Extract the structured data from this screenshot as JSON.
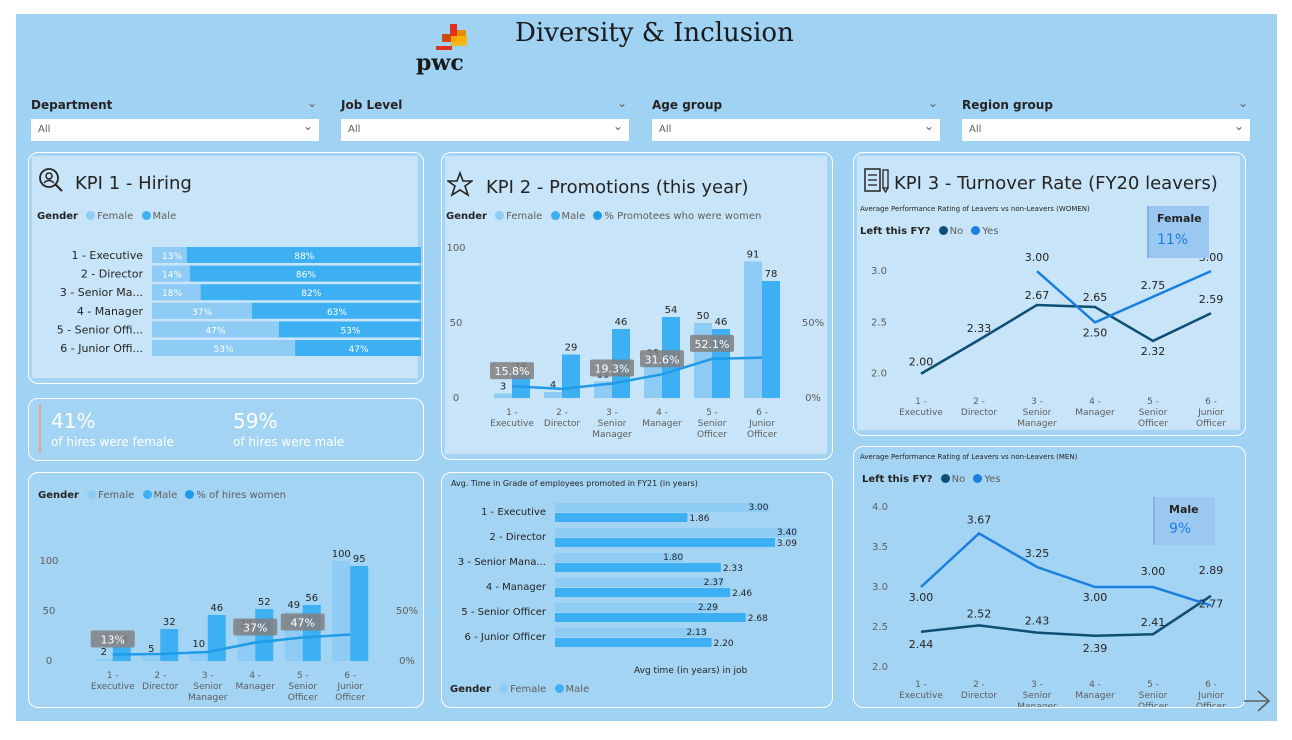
{
  "header": {
    "title": "Diversity & Inclusion",
    "logo_text": "pwc"
  },
  "filters": [
    {
      "label": "Department",
      "value": "All"
    },
    {
      "label": "Job Level",
      "value": "All"
    },
    {
      "label": "Age group",
      "value": "All"
    },
    {
      "label": "Region group",
      "value": "All"
    }
  ],
  "kpi1": {
    "title": "KPI 1 - Hiring",
    "legend_title": "Gender",
    "legend": [
      "Female",
      "Male"
    ],
    "rows": [
      {
        "label": "1 - Executive",
        "female": "13%",
        "male": "88%"
      },
      {
        "label": "2 - Director",
        "female": "14%",
        "male": "86%"
      },
      {
        "label": "3 - Senior Ma...",
        "female": "18%",
        "male": "82%"
      },
      {
        "label": "4 - Manager",
        "female": "37%",
        "male": "63%"
      },
      {
        "label": "5 - Senior Offi...",
        "female": "47%",
        "male": "53%"
      },
      {
        "label": "6 - Junior Offi...",
        "female": "53%",
        "male": "47%"
      }
    ]
  },
  "hires_summary": {
    "female_value": "41%",
    "female_text": "of hires were female",
    "male_value": "59%",
    "male_text": "of hires were male"
  },
  "kpi2": {
    "title": "KPI 2 - Promotions (this year)",
    "legend_title": "Gender",
    "legend": [
      "Female",
      "Male",
      "% Promotees who were women"
    ]
  },
  "kpi3": {
    "title": "KPI 3 - Turnover Rate (FY20 leavers)",
    "chart_title": "Average Performance Rating of Leavers vs non-Leavers (WOMEN)",
    "legend_title": "Left this FY?",
    "legend": [
      "No",
      "Yes"
    ],
    "card_label": "Female",
    "card_value": "11%"
  },
  "hires_chart": {
    "legend_title": "Gender",
    "legend": [
      "Female",
      "Male",
      "% of hires women"
    ]
  },
  "time_chart": {
    "title": "Avg. Time in Grade of employees promoted in FY21 (in years)",
    "xlabel": "Avg time (in years) in job",
    "legend_title": "Gender",
    "legend": [
      "Female",
      "Male"
    ]
  },
  "men_chart": {
    "title": "Average Performance Rating of Leavers vs non-Leavers (MEN)",
    "legend_title": "Left this FY?",
    "legend": [
      "No",
      "Yes"
    ],
    "card_label": "Male",
    "card_value": "9%"
  },
  "colors": {
    "female": "#8ecbf5",
    "male": "#3cb0f2",
    "line": "#1f9be8",
    "no": "#0f4e73",
    "yes": "#1b7fe0"
  },
  "chart_data": [
    {
      "type": "bar",
      "title": "KPI 1 - Hiring",
      "categories": [
        "1 - Executive",
        "2 - Director",
        "3 - Senior Ma...",
        "4 - Manager",
        "5 - Senior Offi...",
        "6 - Junior Offi..."
      ],
      "series": [
        {
          "name": "Female",
          "values": [
            13,
            14,
            18,
            37,
            47,
            53
          ]
        },
        {
          "name": "Male",
          "values": [
            88,
            86,
            82,
            63,
            53,
            47
          ]
        }
      ],
      "stacked": true
    },
    {
      "type": "bar",
      "title": "KPI 2 - Promotions (this year)",
      "categories": [
        "1 - Executive",
        "2 - Director",
        "3 - Senior Manager",
        "4 - Manager",
        "5 - Senior Officer",
        "6 - Junior Officer"
      ],
      "series": [
        {
          "name": "Female",
          "values": [
            3,
            4,
            11,
            25,
            50,
            91
          ]
        },
        {
          "name": "Male",
          "values": [
            16,
            29,
            46,
            54,
            46,
            78
          ]
        },
        {
          "name": "% Promotees who were women",
          "values": [
            15.8,
            12.1,
            19.3,
            31.6,
            52.1,
            53.8
          ]
        }
      ],
      "line_labels": [
        "15.8%",
        "19.3%",
        "31.6%",
        "52.1%"
      ],
      "ylim": [
        0,
        100
      ],
      "y_ticks": [
        "0",
        "50",
        "100"
      ],
      "y2_ticks": [
        "0%",
        "50%"
      ]
    },
    {
      "type": "line",
      "title": "Average Performance Rating of Leavers vs non-Leavers (WOMEN)",
      "categories": [
        "1 - Executive",
        "2 - Director",
        "3 - Senior Manager",
        "4 - Manager",
        "5 - Senior Officer",
        "6 - Junior Officer"
      ],
      "series": [
        {
          "name": "No",
          "values": [
            2.0,
            2.33,
            2.67,
            2.65,
            2.32,
            2.59
          ]
        },
        {
          "name": "Yes",
          "values": [
            null,
            null,
            3.0,
            2.5,
            2.75,
            3.0
          ]
        }
      ],
      "ylim": [
        1.9,
        3.05
      ],
      "y_ticks": [
        "2.0",
        "2.5",
        "3.0"
      ]
    },
    {
      "type": "bar",
      "title": "",
      "categories": [
        "1 - Executive",
        "2 - Director",
        "3 - Senior Manager",
        "4 - Manager",
        "5 - Senior Officer",
        "6 - Junior Officer"
      ],
      "series": [
        {
          "name": "Female",
          "values": [
            2,
            5,
            10,
            30,
            49,
            100
          ]
        },
        {
          "name": "Male",
          "values": [
            14,
            32,
            46,
            52,
            56,
            95
          ]
        },
        {
          "name": "% of hires women",
          "values": [
            13,
            14,
            18,
            37,
            47,
            53
          ]
        }
      ],
      "line_labels": [
        "13%",
        "37%",
        "47%"
      ],
      "ylim": [
        0,
        100
      ],
      "y_ticks": [
        "0",
        "50",
        "100"
      ],
      "y2_ticks": [
        "0%",
        "50%"
      ]
    },
    {
      "type": "bar",
      "title": "Avg. Time in Grade of employees promoted in FY21 (in years)",
      "orientation": "horizontal",
      "categories": [
        "1 - Executive",
        "2 - Director",
        "3 - Senior Mana...",
        "4 - Manager",
        "5 - Senior Officer",
        "6 - Junior Officer"
      ],
      "series": [
        {
          "name": "Female",
          "values": [
            3.0,
            3.4,
            1.8,
            2.37,
            2.29,
            2.13
          ]
        },
        {
          "name": "Male",
          "values": [
            1.86,
            3.09,
            2.33,
            2.46,
            2.68,
            2.2
          ]
        }
      ],
      "xlabel": "Avg time (in years) in job"
    },
    {
      "type": "line",
      "title": "Average Performance Rating of Leavers vs non-Leavers (MEN)",
      "categories": [
        "1 - Executive",
        "2 - Director",
        "3 - Senior Manager",
        "4 - Manager",
        "5 - Senior Officer",
        "6 - Junior Officer"
      ],
      "series": [
        {
          "name": "No",
          "values": [
            2.44,
            2.52,
            2.43,
            2.39,
            2.41,
            2.89
          ]
        },
        {
          "name": "Yes",
          "values": [
            3.0,
            3.67,
            3.25,
            3.0,
            3.0,
            2.77
          ]
        }
      ],
      "ylim": [
        2.0,
        4.0
      ],
      "y_ticks": [
        "2.0",
        "2.5",
        "3.0",
        "3.5",
        "4.0"
      ]
    }
  ]
}
